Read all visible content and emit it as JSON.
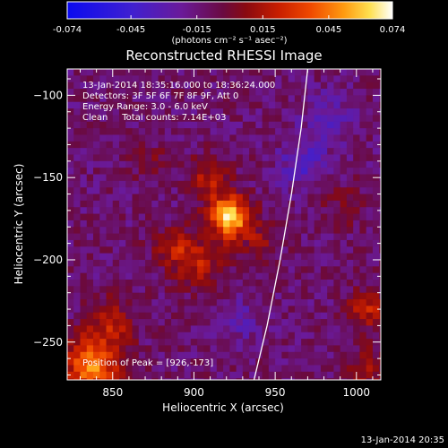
{
  "colorbar": {
    "tick_labels": [
      "-0.074",
      "-0.045",
      "-0.015",
      "0.015",
      "0.045",
      "0.074"
    ],
    "tick_values": [
      -0.074,
      -0.045,
      -0.015,
      0.015,
      0.045,
      0.074
    ],
    "range": [
      -0.074,
      0.074
    ],
    "unit_label": "(photons cm⁻² s⁻¹ asec⁻²)",
    "colormap": "blue-purple-red-orange-yellow-white"
  },
  "chart_data": {
    "type": "heatmap",
    "title": "Reconstructed RHESSI Image",
    "xlabel": "Heliocentric X (arcsec)",
    "ylabel": "Heliocentric Y (arcsec)",
    "xlim": [
      822,
      1015
    ],
    "ylim": [
      -273,
      -84
    ],
    "x_ticks": [
      850,
      900,
      950,
      1000
    ],
    "y_ticks": [
      -100,
      -150,
      -200,
      -250
    ],
    "x_tick_labels": [
      "850",
      "900",
      "950",
      "1000"
    ],
    "y_tick_labels": [
      "−100",
      "−150",
      "−200",
      "−250"
    ],
    "value_range": [
      -0.074,
      0.074
    ],
    "grid_cell_arcsec": 4,
    "peak": {
      "x": 926,
      "y": -173,
      "value": 0.074
    },
    "sources": [
      {
        "x": 920,
        "y": -172,
        "sigma": 9,
        "value": 0.074
      },
      {
        "x": 908,
        "y": -148,
        "sigma": 9,
        "value": 0.028
      },
      {
        "x": 900,
        "y": -200,
        "sigma": 11,
        "value": 0.03
      },
      {
        "x": 885,
        "y": -190,
        "sigma": 9,
        "value": 0.022
      },
      {
        "x": 940,
        "y": -188,
        "sigma": 8,
        "value": 0.02
      },
      {
        "x": 872,
        "y": -140,
        "sigma": 8,
        "value": 0.014
      },
      {
        "x": 835,
        "y": -262,
        "sigma": 12,
        "value": 0.06
      },
      {
        "x": 848,
        "y": -236,
        "sigma": 10,
        "value": 0.028
      },
      {
        "x": 1005,
        "y": -228,
        "sigma": 9,
        "value": 0.03
      },
      {
        "x": 1003,
        "y": -265,
        "sigma": 9,
        "value": 0.024
      },
      {
        "x": 990,
        "y": -165,
        "sigma": 10,
        "value": 0.012
      },
      {
        "x": 965,
        "y": -140,
        "sigma": 10,
        "value": -0.025
      },
      {
        "x": 925,
        "y": -235,
        "sigma": 10,
        "value": -0.015
      },
      {
        "x": 980,
        "y": -112,
        "sigma": 12,
        "value": -0.016
      }
    ],
    "annotations": [
      "13-Jan-2014 18:35:16.000 to 18:36:24.000",
      "Detectors: 3F 5F 6F 7F 8F 9F, Att 0",
      "Energy Range: 3.0 - 6.0 keV",
      "Clean     Total counts: 7.14E+03"
    ],
    "peak_label": "Position of Peak = [926,-173]",
    "limb": {
      "description": "solar limb",
      "points": [
        [
          937,
          -273
        ],
        [
          945,
          -240
        ],
        [
          953,
          -200
        ],
        [
          960,
          -160
        ],
        [
          966,
          -120
        ],
        [
          970,
          -84
        ]
      ]
    }
  },
  "footer": {
    "timestamp": "13-Jan-2014 20:35"
  }
}
